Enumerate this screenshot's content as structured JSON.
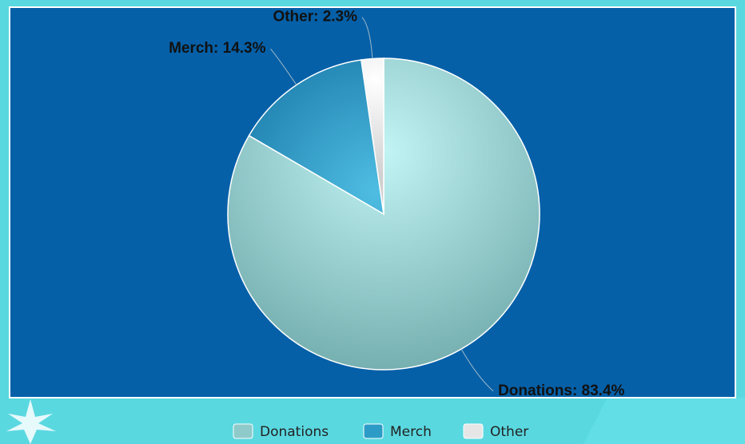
{
  "chart_data": {
    "type": "pie",
    "categories": [
      "Donations",
      "Merch",
      "Other"
    ],
    "values": [
      83.4,
      14.3,
      2.3
    ],
    "value_labels": [
      "Donations: 83.4%",
      "Merch: 14.3%",
      "Other: 2.3%"
    ],
    "colors": [
      "#8fcaca",
      "#2c9cc6",
      "#e6e6e6"
    ],
    "legend": "bottom"
  }
}
